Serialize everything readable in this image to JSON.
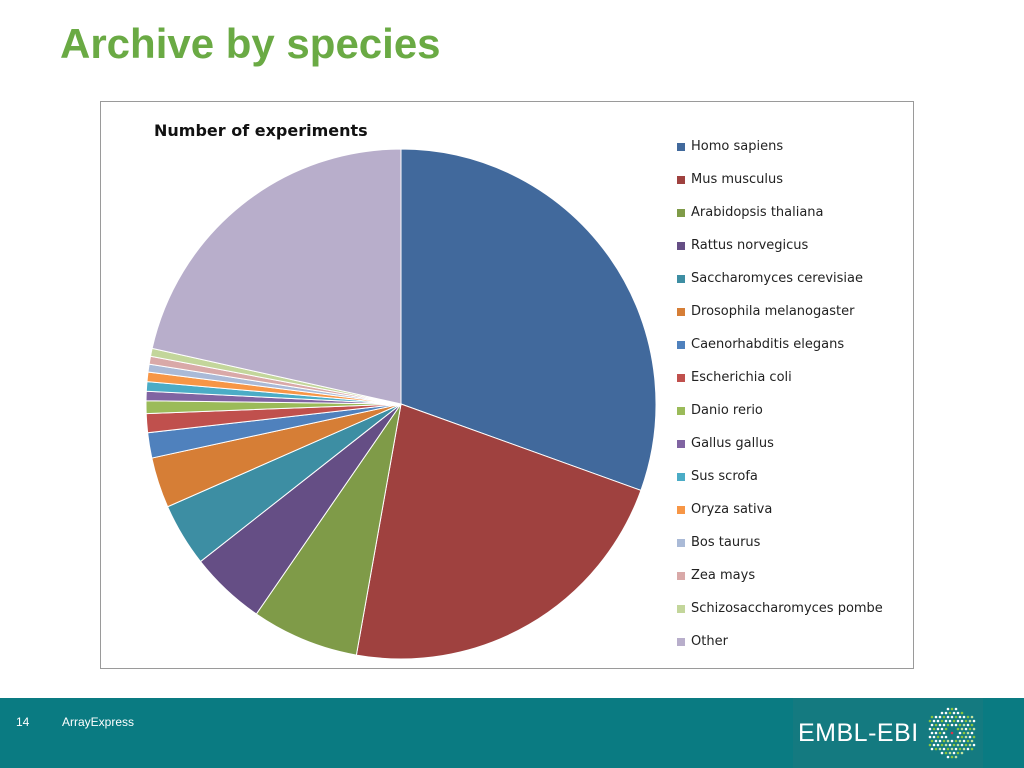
{
  "slide": {
    "title": "Archive by species",
    "page_number": "14",
    "footer_text": "ArrayExpress",
    "logo_text": "EMBL-EBI"
  },
  "chart_data": {
    "type": "pie",
    "title": "Number of experiments",
    "legend_position": "right",
    "start_angle": "12 o'clock, clockwise",
    "slices": [
      {
        "label": "Homo sapiens",
        "value": 30.5,
        "color": "#41699c"
      },
      {
        "label": "Mus musculus",
        "value": 22.3,
        "color": "#9f413f"
      },
      {
        "label": "Arabidopsis thaliana",
        "value": 6.8,
        "color": "#7f9b48"
      },
      {
        "label": "Rattus norvegicus",
        "value": 4.8,
        "color": "#654e85"
      },
      {
        "label": "Saccharomyces cerevisiae",
        "value": 4.0,
        "color": "#3d8ea3"
      },
      {
        "label": "Drosophila melanogaster",
        "value": 3.2,
        "color": "#d67e36"
      },
      {
        "label": "Caenorhabditis elegans",
        "value": 1.6,
        "color": "#4f81bd"
      },
      {
        "label": "Escherichia coli",
        "value": 1.2,
        "color": "#c0504d"
      },
      {
        "label": "Danio rerio",
        "value": 0.8,
        "color": "#9bbb59"
      },
      {
        "label": "Gallus gallus",
        "value": 0.6,
        "color": "#8064a2"
      },
      {
        "label": "Sus scrofa",
        "value": 0.6,
        "color": "#4bacc6"
      },
      {
        "label": "Oryza sativa",
        "value": 0.6,
        "color": "#f79646"
      },
      {
        "label": "Bos taurus",
        "value": 0.5,
        "color": "#aabad7"
      },
      {
        "label": "Zea mays",
        "value": 0.5,
        "color": "#d9a9a8"
      },
      {
        "label": "Schizosaccharomyces pombe",
        "value": 0.5,
        "color": "#c3d69b"
      },
      {
        "label": "Other",
        "value": 21.5,
        "color": "#b8aecb"
      }
    ]
  }
}
